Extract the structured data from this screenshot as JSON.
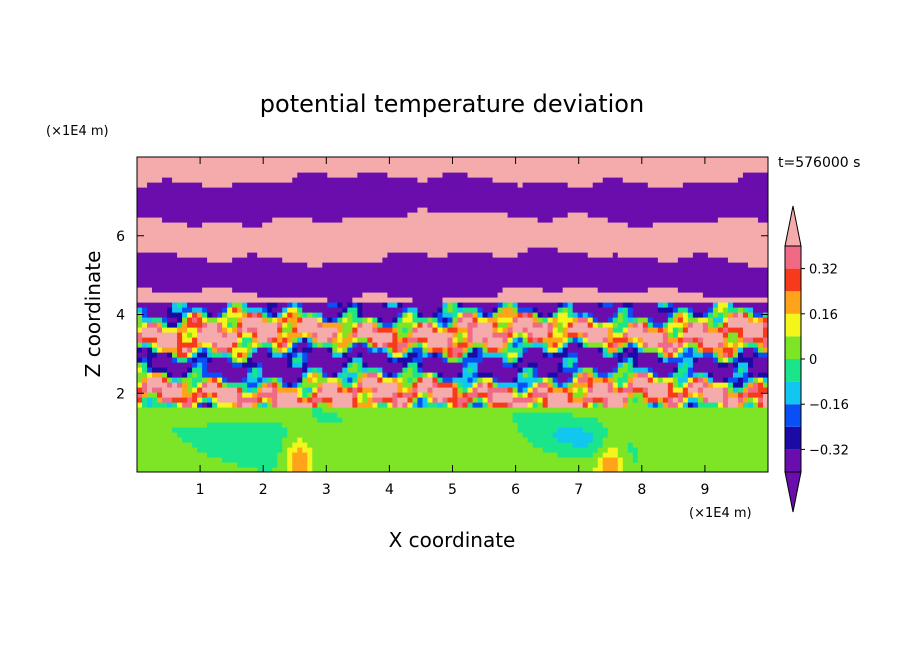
{
  "chart_data": {
    "type": "heatmap",
    "title": "potential temperature deviation",
    "xlabel": "X coordinate",
    "ylabel": "Z coordinate",
    "x_unit": "(×1E4 m)",
    "y_unit": "(×1E4 m)",
    "time_label": "t=576000 s",
    "xlim": [
      0,
      10
    ],
    "ylim": [
      0,
      8
    ],
    "x_ticks": [
      "1",
      "2",
      "3",
      "4",
      "5",
      "6",
      "7",
      "8",
      "9"
    ],
    "y_ticks": [
      "2",
      "4",
      "6"
    ],
    "colorbar": {
      "labels": [
        "0.32",
        "0.16",
        "0",
        "−0.16",
        "−0.32"
      ],
      "label_values": [
        0.32,
        0.16,
        0,
        -0.16,
        -0.32
      ],
      "levels": [
        -0.4,
        -0.32,
        -0.24,
        -0.16,
        -0.08,
        0,
        0.08,
        0.16,
        0.24,
        0.32,
        0.4
      ],
      "colors": [
        "#6a0dad",
        "#1c0aa6",
        "#0a4ff5",
        "#12c7ef",
        "#1ae58a",
        "#7ee526",
        "#f3f51b",
        "#ffa31a",
        "#f83a1c",
        "#f06a86"
      ],
      "under_color": "#6a0dad",
      "over_color": "#f5abab"
    },
    "fields": [
      {
        "z_range": [
          0,
          1.6
        ],
        "dominant": "around 0 to +0.08, with -0.08 to -0.16 cells near x≈2 and x≈7 and warm plumes up to +0.24 near x≈2.5 and x≈7.5"
      },
      {
        "z_range": [
          1.6,
          4.3
        ],
        "dominant": "mixed layer spanning -0.4 to +0.4"
      },
      {
        "z_range": [
          4.3,
          8.0
        ],
        "dominant": "alternating horizontal bands above +0.4 and below -0.4"
      }
    ]
  }
}
